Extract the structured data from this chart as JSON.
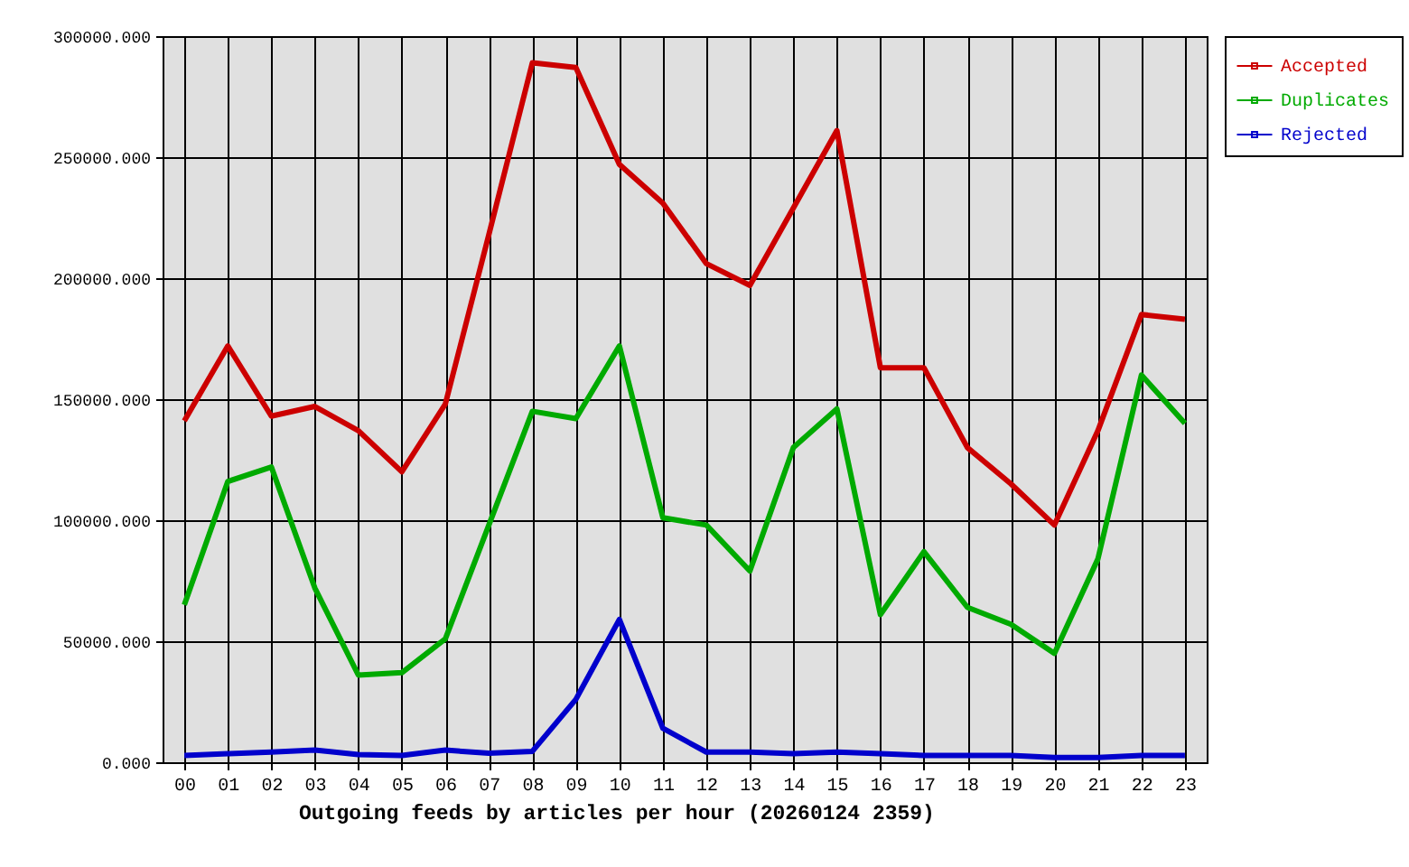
{
  "chart_data": {
    "type": "line",
    "xlabel": "Outgoing feeds by articles per hour (20260124 2359)",
    "categories": [
      "00",
      "01",
      "02",
      "03",
      "04",
      "05",
      "06",
      "07",
      "08",
      "09",
      "10",
      "11",
      "12",
      "13",
      "14",
      "15",
      "16",
      "17",
      "18",
      "19",
      "20",
      "21",
      "22",
      "23"
    ],
    "ylim": [
      0,
      300000
    ],
    "yticks": [
      {
        "value": 0,
        "label": "0.000"
      },
      {
        "value": 50000,
        "label": "50000.000"
      },
      {
        "value": 100000,
        "label": "100000.000"
      },
      {
        "value": 150000,
        "label": "150000.000"
      },
      {
        "value": 200000,
        "label": "200000.000"
      },
      {
        "value": 250000,
        "label": "250000.000"
      },
      {
        "value": 300000,
        "label": "300000.000"
      }
    ],
    "grid": true,
    "legend": "top right",
    "line_style": "solid",
    "series": [
      {
        "name": "Accepted",
        "color": "#cc0000",
        "values": [
          141000,
          172000,
          143000,
          147000,
          137000,
          120000,
          148000,
          218000,
          289000,
          287000,
          247000,
          231000,
          206000,
          197000,
          229000,
          261000,
          163000,
          163000,
          130000,
          115000,
          98000,
          137000,
          185000,
          183000
        ]
      },
      {
        "name": "Duplicates",
        "color": "#00aa00",
        "values": [
          65000,
          116000,
          122000,
          72000,
          36000,
          37000,
          51000,
          98000,
          145000,
          142000,
          172000,
          101000,
          98000,
          79000,
          130000,
          146000,
          61000,
          87000,
          64000,
          57000,
          45000,
          84000,
          160000,
          140000
        ]
      },
      {
        "name": "Rejected",
        "color": "#0000cc",
        "values": [
          2800,
          3500,
          4200,
          5000,
          3200,
          2800,
          5000,
          3700,
          4500,
          26000,
          59000,
          14000,
          4200,
          4200,
          3500,
          4200,
          3500,
          2800,
          2800,
          2800,
          2000,
          2000,
          2800,
          2800
        ]
      }
    ]
  }
}
